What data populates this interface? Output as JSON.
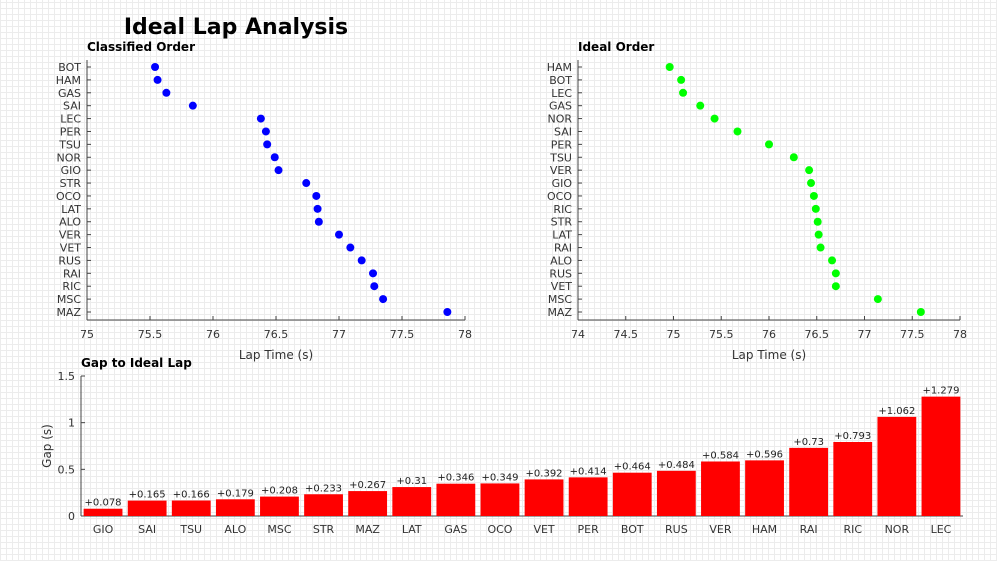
{
  "chart_data": [
    {
      "type": "scatter",
      "title": "Classified Order",
      "xlabel": "Lap Time (s)",
      "xlim": [
        75,
        78
      ],
      "xticks": [
        75,
        75.5,
        76,
        76.5,
        77,
        77.5,
        78
      ],
      "color": "#0000ff",
      "categories": [
        "BOT",
        "HAM",
        "GAS",
        "SAI",
        "LEC",
        "PER",
        "TSU",
        "NOR",
        "GIO",
        "STR",
        "OCO",
        "LAT",
        "ALO",
        "VER",
        "VET",
        "RUS",
        "RAI",
        "RIC",
        "MSC",
        "MAZ"
      ],
      "values": [
        75.54,
        75.56,
        75.63,
        75.84,
        76.38,
        76.42,
        76.43,
        76.49,
        76.52,
        76.74,
        76.82,
        76.83,
        76.84,
        77.0,
        77.09,
        77.18,
        77.27,
        77.28,
        77.35,
        77.86
      ]
    },
    {
      "type": "scatter",
      "title": "Ideal Order",
      "xlabel": "Lap Time (s)",
      "xlim": [
        74,
        78
      ],
      "xticks": [
        74,
        74.5,
        75,
        75.5,
        76,
        76.5,
        77,
        77.5,
        78
      ],
      "color": "#00ff00",
      "categories": [
        "HAM",
        "BOT",
        "LEC",
        "GAS",
        "NOR",
        "SAI",
        "PER",
        "TSU",
        "VER",
        "GIO",
        "OCO",
        "RIC",
        "STR",
        "LAT",
        "RAI",
        "ALO",
        "RUS",
        "VET",
        "MSC",
        "MAZ"
      ],
      "values": [
        74.96,
        75.08,
        75.1,
        75.28,
        75.43,
        75.67,
        76.0,
        76.26,
        76.42,
        76.44,
        76.47,
        76.49,
        76.51,
        76.52,
        76.54,
        76.66,
        76.7,
        76.7,
        77.14,
        77.59
      ]
    },
    {
      "type": "bar",
      "title": "Gap to Ideal Lap",
      "ylabel": "Gap (s)",
      "ylim": [
        0,
        1.5
      ],
      "yticks": [
        0,
        0.5,
        1,
        1.5
      ],
      "color": "#ff0000",
      "categories": [
        "GIO",
        "SAI",
        "TSU",
        "ALO",
        "MSC",
        "STR",
        "MAZ",
        "LAT",
        "GAS",
        "OCO",
        "VET",
        "PER",
        "BOT",
        "RUS",
        "VER",
        "HAM",
        "RAI",
        "RIC",
        "NOR",
        "LEC"
      ],
      "values": [
        0.078,
        0.165,
        0.166,
        0.179,
        0.208,
        0.233,
        0.267,
        0.31,
        0.346,
        0.349,
        0.392,
        0.414,
        0.464,
        0.484,
        0.584,
        0.596,
        0.73,
        0.793,
        1.062,
        1.279
      ],
      "labels": [
        "+0.078",
        "+0.165",
        "+0.166",
        "+0.179",
        "+0.208",
        "+0.233",
        "+0.267",
        "+0.31",
        "+0.346",
        "+0.349",
        "+0.392",
        "+0.414",
        "+0.464",
        "+0.484",
        "+0.584",
        "+0.596",
        "+0.73",
        "+0.793",
        "+1.062",
        "+1.279"
      ]
    }
  ],
  "title": "Ideal Lap Analysis"
}
